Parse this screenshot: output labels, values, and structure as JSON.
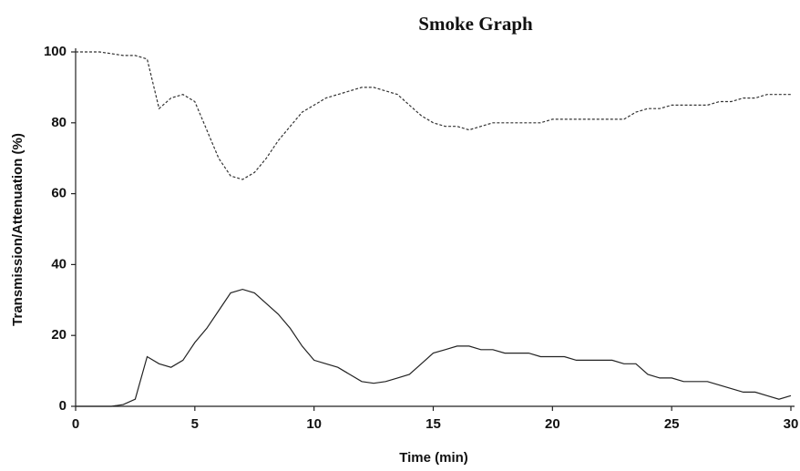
{
  "chart_data": {
    "type": "line",
    "title": "Smoke Graph",
    "x_label": "Time (min)",
    "y_label": "Transmission/Attenuation (%)",
    "x": [
      0,
      0.5,
      1,
      1.5,
      2,
      2.5,
      3,
      3.5,
      4,
      4.5,
      5,
      5.5,
      6,
      6.5,
      7,
      7.5,
      8,
      8.5,
      9,
      9.5,
      10,
      10.5,
      11,
      11.5,
      12,
      12.5,
      13,
      13.5,
      14,
      14.5,
      15,
      15.5,
      16,
      16.5,
      17,
      17.5,
      18,
      18.5,
      19,
      19.5,
      20,
      20.5,
      21,
      21.5,
      22,
      22.5,
      23,
      23.5,
      24,
      24.5,
      25,
      25.5,
      26,
      26.5,
      27,
      27.5,
      28,
      28.5,
      29,
      29.5,
      30
    ],
    "series": [
      {
        "color": "#333333",
        "dashed": true,
        "values": [
          100,
          100,
          100,
          99.5,
          99,
          99,
          98,
          84,
          87,
          88,
          86,
          78,
          70,
          65,
          64,
          66,
          70,
          75,
          79,
          83,
          85,
          87,
          88,
          89,
          90,
          90,
          89,
          88,
          85,
          82,
          80,
          79,
          79,
          78,
          79,
          80,
          80,
          80,
          80,
          80,
          81,
          81,
          81,
          81,
          81,
          81,
          81,
          83,
          84,
          84,
          85,
          85,
          85,
          85,
          86,
          86,
          87,
          87,
          88,
          88,
          88
        ]
      },
      {
        "color": "#222222",
        "dashed": false,
        "values": [
          0,
          0,
          0,
          0,
          0.5,
          2,
          14,
          12,
          11,
          13,
          18,
          22,
          27,
          32,
          33,
          32,
          29,
          26,
          22,
          17,
          13,
          12,
          11,
          9,
          7,
          6.5,
          7,
          8,
          9,
          12,
          15,
          16,
          17,
          17,
          16,
          16,
          15,
          15,
          15,
          14,
          14,
          14,
          13,
          13,
          13,
          13,
          12,
          12,
          9,
          8,
          8,
          7,
          7,
          7,
          6,
          5,
          4,
          4,
          3,
          2,
          3
        ]
      }
    ],
    "xlim": [
      0,
      30
    ],
    "xticks": [
      0,
      5,
      10,
      15,
      20,
      25,
      30
    ],
    "ylim": [
      0,
      100
    ],
    "yticks": [
      0,
      20,
      40,
      60,
      80,
      100
    ],
    "grid": false
  }
}
